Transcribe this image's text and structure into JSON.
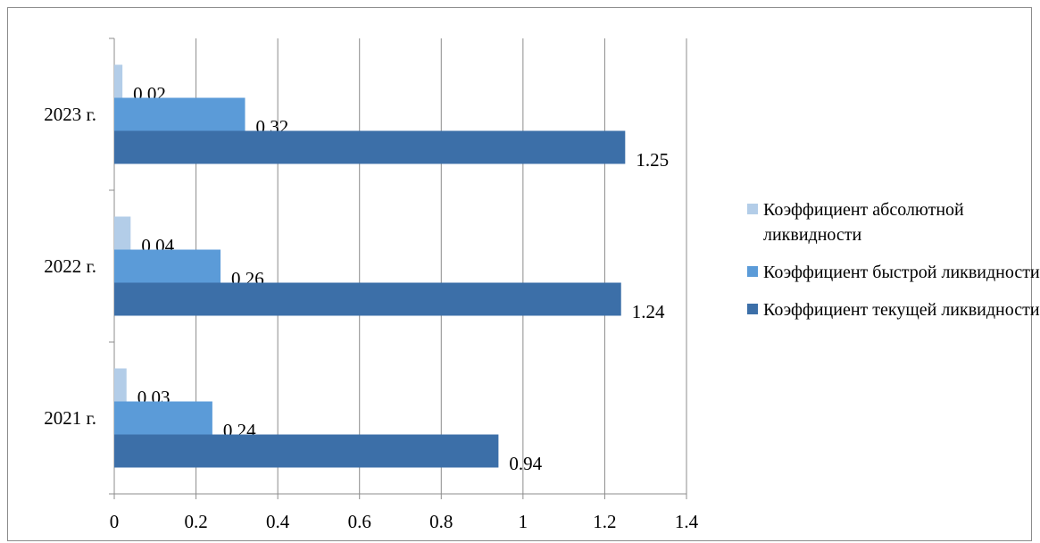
{
  "chart_data": {
    "type": "bar",
    "orientation": "horizontal",
    "categories": [
      "2021 г.",
      "2022 г.",
      "2023 г."
    ],
    "series": [
      {
        "name": "Коэффициент абсолютной ликвидности",
        "values": [
          0.03,
          0.04,
          0.02
        ],
        "color": "#b3cde8"
      },
      {
        "name": "Коэффициент быстрой ликвидности",
        "values": [
          0.24,
          0.26,
          0.32
        ],
        "color": "#5b9bd8"
      },
      {
        "name": "Коэффициент текущей ликвидности",
        "values": [
          0.94,
          1.24,
          1.25
        ],
        "color": "#3c6fa8"
      }
    ],
    "data_labels": {
      "2021 г.": [
        "0.03",
        "0.24",
        "0.94"
      ],
      "2022 г.": [
        "0.04",
        "0.26",
        "1.24"
      ],
      "2023 г.": [
        "0.02",
        "0.32",
        "1.25"
      ]
    },
    "xticks": [
      "0",
      "0.2",
      "0.4",
      "0.6",
      "0.8",
      "1",
      "1.2",
      "1.4"
    ],
    "xlim": [
      0,
      1.4
    ],
    "grid": true,
    "legend_position": "right",
    "title": "",
    "xlabel": "",
    "ylabel": ""
  }
}
